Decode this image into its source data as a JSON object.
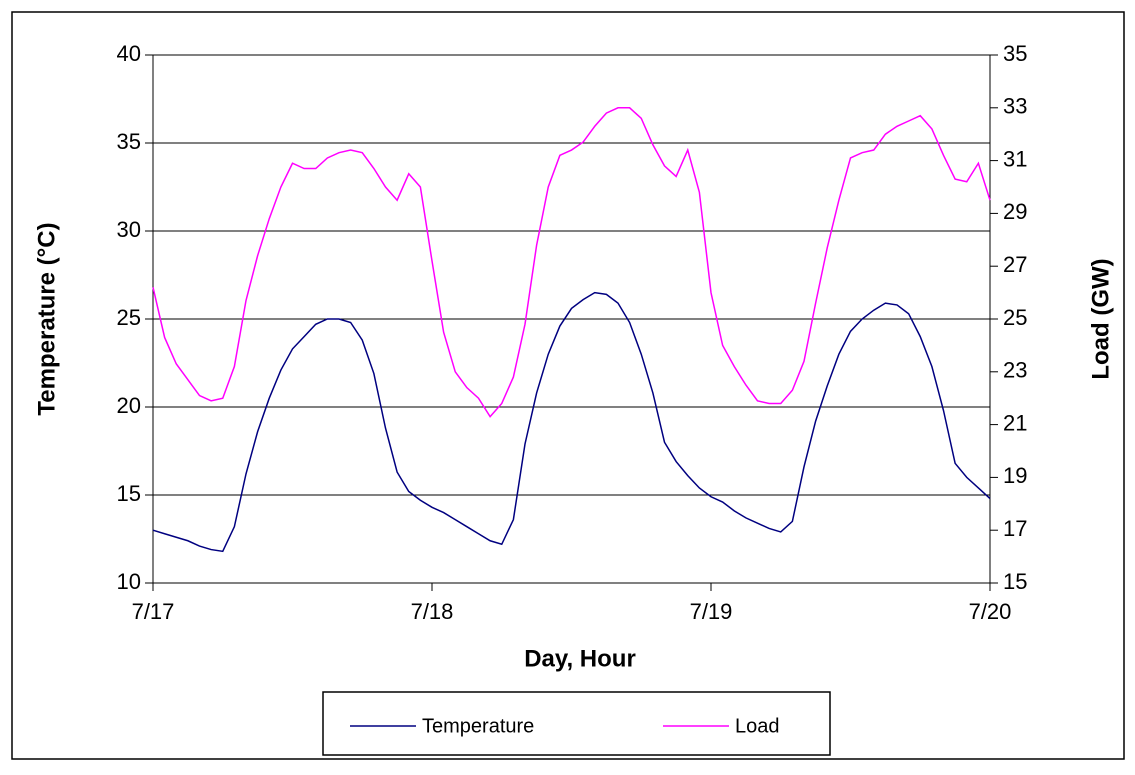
{
  "chart_data": {
    "type": "line",
    "x_label": "Day, Hour",
    "y_label": "Temperature (°C)",
    "y2_label": "Load (GW)",
    "x": [
      0,
      1,
      2,
      3,
      4,
      5,
      6,
      7,
      8,
      9,
      10,
      11,
      12,
      13,
      14,
      15,
      16,
      17,
      18,
      19,
      20,
      21,
      22,
      23,
      24,
      25,
      26,
      27,
      28,
      29,
      30,
      31,
      32,
      33,
      34,
      35,
      36,
      37,
      38,
      39,
      40,
      41,
      42,
      43,
      44,
      45,
      46,
      47,
      48,
      49,
      50,
      51,
      52,
      53,
      54,
      55,
      56,
      57,
      58,
      59,
      60,
      61,
      62,
      63,
      64,
      65,
      66,
      67,
      68,
      69,
      70,
      71,
      72
    ],
    "xlim": [
      0,
      72
    ],
    "xticks": [
      {
        "value": 0,
        "label": "7/17"
      },
      {
        "value": 24,
        "label": "7/18"
      },
      {
        "value": 48,
        "label": "7/19"
      },
      {
        "value": 72,
        "label": "7/20"
      }
    ],
    "ylim": [
      10,
      40
    ],
    "yticks": [
      10,
      15,
      20,
      25,
      30,
      35,
      40
    ],
    "y2lim": [
      15,
      35
    ],
    "y2ticks": [
      15,
      17,
      19,
      21,
      23,
      25,
      27,
      29,
      31,
      33,
      35
    ],
    "grid": true,
    "legend": "bottom",
    "series": [
      {
        "name": "Temperature",
        "color": "#000080",
        "values": [
          13.0,
          12.8,
          12.6,
          12.4,
          12.1,
          11.9,
          11.8,
          13.2,
          16.2,
          18.6,
          20.5,
          22.1,
          23.3,
          24.0,
          24.7,
          25.0,
          25.0,
          24.8,
          23.8,
          21.9,
          18.8,
          16.3,
          15.2,
          14.7,
          14.3,
          14.0,
          13.6,
          13.2,
          12.8,
          12.4,
          12.2,
          13.6,
          17.9,
          20.8,
          23.0,
          24.6,
          25.6,
          26.1,
          26.5,
          26.4,
          25.9,
          24.8,
          23.0,
          20.8,
          18.0,
          16.9,
          16.1,
          15.4,
          14.9,
          14.6,
          14.1,
          13.7,
          13.4,
          13.1,
          12.9,
          13.5,
          16.6,
          19.2,
          21.2,
          23.0,
          24.3,
          25.0,
          25.5,
          25.9,
          25.8,
          25.3,
          24.0,
          22.3,
          19.8,
          16.8,
          16.0,
          15.4,
          14.8
        ]
      },
      {
        "name": "Load",
        "color": "#ff00ff",
        "axis": "y2",
        "values": [
          26.2,
          24.3,
          23.3,
          22.7,
          22.1,
          21.9,
          22.0,
          23.2,
          25.7,
          27.4,
          28.8,
          30.0,
          30.9,
          30.7,
          30.7,
          31.1,
          31.3,
          31.4,
          31.3,
          30.7,
          30.0,
          29.5,
          30.5,
          30.0,
          27.2,
          24.5,
          23.0,
          22.4,
          22.0,
          21.3,
          21.8,
          22.8,
          24.8,
          27.8,
          30.0,
          31.2,
          31.4,
          31.7,
          32.3,
          32.8,
          33.0,
          33.0,
          32.6,
          31.6,
          30.8,
          30.4,
          31.4,
          29.8,
          26.0,
          24.0,
          23.2,
          22.5,
          21.9,
          21.8,
          21.8,
          22.3,
          23.4,
          25.6,
          27.7,
          29.5,
          31.1,
          31.3,
          31.4,
          32.0,
          32.3,
          32.5,
          32.7,
          32.2,
          31.2,
          30.3,
          30.2,
          30.9,
          29.5
        ]
      }
    ]
  }
}
